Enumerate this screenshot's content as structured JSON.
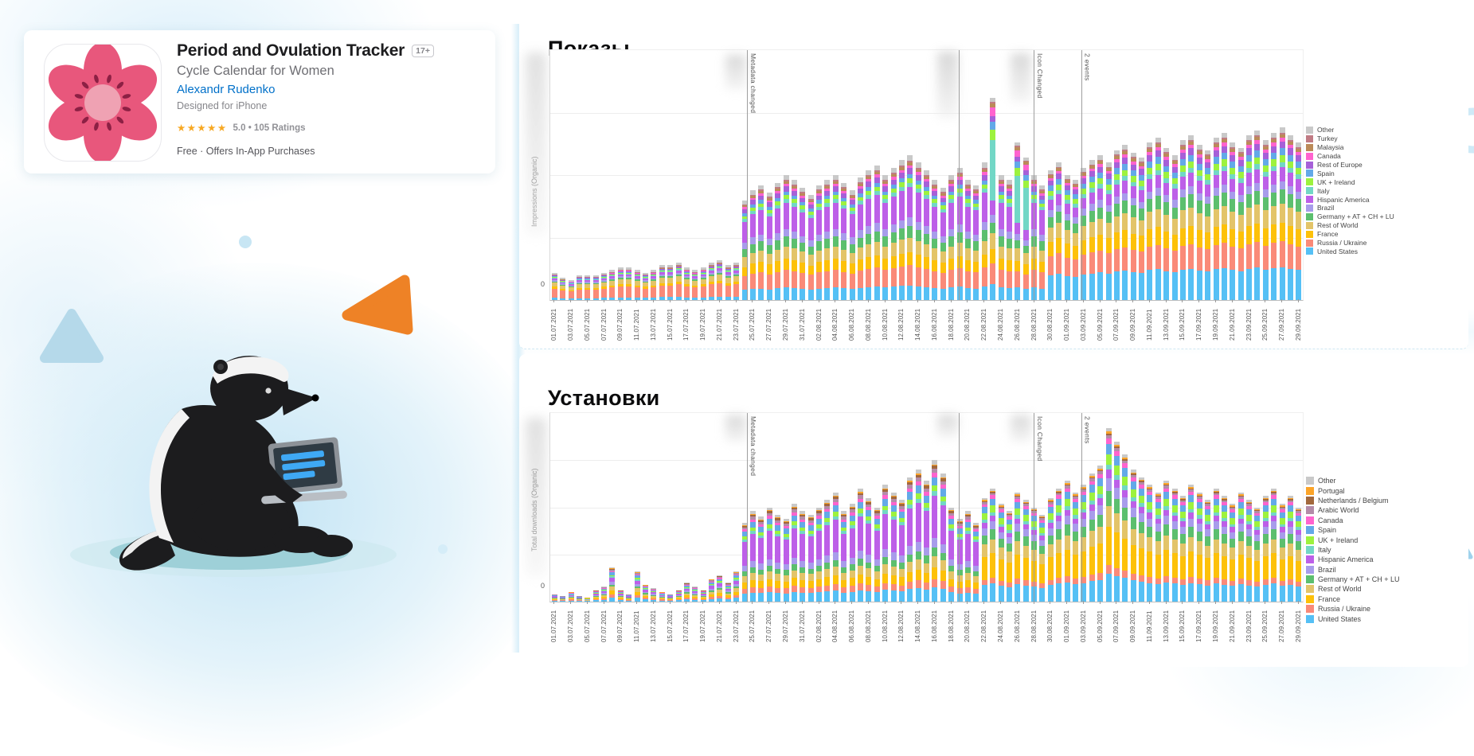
{
  "app_card": {
    "title": "Period and Ovulation Tracker",
    "age_badge": "17+",
    "subtitle": "Cycle Calendar for Women",
    "developer": "Alexandr Rudenko",
    "platform_note": "Designed for iPhone",
    "stars": "★★★★★",
    "rating_text": "5.0 • 105 Ratings",
    "price_line": "Free · Offers In-App Purchases",
    "accent_link_color": "#0070c9",
    "star_color": "#f7a823"
  },
  "chart_data": [
    {
      "type": "bar",
      "stacked": true,
      "title": "Показы",
      "ylabel": "Impressions (Organic)",
      "y_base_tick": "0",
      "y_axis_values_hidden": true,
      "grid": true,
      "legend_position": "right",
      "days": 91,
      "x_tick_labels": [
        "01.07.2021",
        "03.07.2021",
        "05.07.2021",
        "07.07.2021",
        "09.07.2021",
        "11.07.2021",
        "13.07.2021",
        "15.07.2021",
        "17.07.2021",
        "19.07.2021",
        "21.07.2021",
        "23.07.2021",
        "25.07.2021",
        "27.07.2021",
        "29.07.2021",
        "31.07.2021",
        "02.08.2021",
        "04.08.2021",
        "06.08.2021",
        "08.08.2021",
        "10.08.2021",
        "12.08.2021",
        "14.08.2021",
        "16.08.2021",
        "18.08.2021",
        "20.08.2021",
        "22.08.2021",
        "24.08.2021",
        "26.08.2021",
        "28.08.2021",
        "30.08.2021",
        "01.09.2021",
        "03.09.2021",
        "05.09.2021",
        "07.09.2021",
        "09.09.2021",
        "11.09.2021",
        "13.09.2021",
        "15.09.2021",
        "17.09.2021",
        "19.09.2021",
        "21.09.2021",
        "23.09.2021",
        "25.09.2021",
        "27.09.2021",
        "29.09.2021"
      ],
      "events": [
        {
          "x_day": 23.8,
          "label": "Metadata changed"
        },
        {
          "x_day": 49.4,
          "label": ""
        },
        {
          "x_day": 58.45,
          "label": "Icon Changed"
        },
        {
          "x_day": 64.2,
          "label": "2 events"
        }
      ],
      "series_bottom_to_top": [
        {
          "name": "United States",
          "color": "#55c0f5"
        },
        {
          "name": "Russia / Ukraine",
          "color": "#fa8a78"
        },
        {
          "name": "France",
          "color": "#fdc109"
        },
        {
          "name": "Rest of World",
          "color": "#e3c469"
        },
        {
          "name": "Germany + AT + CH + LU",
          "color": "#5cbf6e"
        },
        {
          "name": "Brazil",
          "color": "#a89ceb"
        },
        {
          "name": "Hispanic America",
          "color": "#bd5fe8"
        },
        {
          "name": "Italy",
          "color": "#72d7c6"
        },
        {
          "name": "UK + Ireland",
          "color": "#9df23e"
        },
        {
          "name": "Spain",
          "color": "#63a9e8"
        },
        {
          "name": "Rest of Europe",
          "color": "#a660d8"
        },
        {
          "name": "Canada",
          "color": "#ff63ce"
        },
        {
          "name": "Malaysia",
          "color": "#bb8a58"
        },
        {
          "name": "Turkey",
          "color": "#c07b84"
        },
        {
          "name": "Other",
          "color": "#c9c9c9"
        }
      ],
      "composition_profiles": {
        "early": [
          8,
          34,
          6,
          16,
          4,
          5,
          6,
          3,
          2,
          2,
          3,
          1,
          1,
          2,
          7
        ],
        "growth": [
          10,
          14,
          9,
          10,
          8,
          6,
          21,
          3,
          3,
          3,
          4,
          2,
          2,
          1,
          4
        ],
        "spike": [
          8,
          10,
          7,
          8,
          5,
          4,
          7,
          30,
          5,
          4,
          3,
          4,
          2,
          1,
          2
        ],
        "late": [
          19,
          15,
          11,
          11,
          8,
          5,
          8,
          3,
          4,
          4,
          4,
          2,
          2,
          1,
          3
        ]
      },
      "phases": [
        {
          "from": 0,
          "to": 22,
          "profile": "early"
        },
        {
          "from": 23,
          "to": 52,
          "profile": "growth"
        },
        {
          "from": 53,
          "to": 53,
          "profile": "spike"
        },
        {
          "from": 54,
          "to": 55,
          "profile": "growth"
        },
        {
          "from": 56,
          "to": 57,
          "profile": "spike"
        },
        {
          "from": 58,
          "to": 59,
          "profile": "growth"
        },
        {
          "from": 60,
          "to": 90,
          "profile": "late"
        }
      ],
      "daily_total_pct": [
        11,
        9,
        8,
        10,
        10,
        10,
        11,
        12,
        13,
        13,
        12,
        11,
        12,
        14,
        14,
        15,
        13,
        12,
        13,
        15,
        16,
        14,
        15,
        40,
        44,
        46,
        43,
        47,
        50,
        48,
        45,
        42,
        46,
        48,
        50,
        47,
        44,
        49,
        52,
        54,
        50,
        53,
        56,
        58,
        55,
        52,
        48,
        45,
        50,
        53,
        48,
        46,
        55,
        81,
        50,
        48,
        63,
        57,
        50,
        46,
        52,
        55,
        50,
        48,
        53,
        56,
        58,
        55,
        60,
        62,
        59,
        57,
        63,
        65,
        61,
        58,
        64,
        66,
        62,
        60,
        65,
        67,
        63,
        61,
        66,
        68,
        64,
        67,
        69,
        66,
        63
      ]
    },
    {
      "type": "bar",
      "stacked": true,
      "title": "Установки",
      "ylabel": "Total downloads (Organic)",
      "y_base_tick": "0",
      "y_axis_values_hidden": true,
      "grid": true,
      "legend_position": "right",
      "days": 91,
      "x_tick_labels": [
        "01.07.2021",
        "03.07.2021",
        "05.07.2021",
        "07.07.2021",
        "09.07.2021",
        "11.07.2021",
        "13.07.2021",
        "15.07.2021",
        "17.07.2021",
        "19.07.2021",
        "21.07.2021",
        "23.07.2021",
        "25.07.2021",
        "27.07.2021",
        "29.07.2021",
        "31.07.2021",
        "02.08.2021",
        "04.08.2021",
        "06.08.2021",
        "08.08.2021",
        "10.08.2021",
        "12.08.2021",
        "14.08.2021",
        "16.08.2021",
        "18.08.2021",
        "20.08.2021",
        "22.08.2021",
        "24.08.2021",
        "26.08.2021",
        "28.08.2021",
        "30.08.2021",
        "01.09.2021",
        "03.09.2021",
        "05.09.2021",
        "07.09.2021",
        "09.09.2021",
        "11.09.2021",
        "13.09.2021",
        "15.09.2021",
        "17.09.2021",
        "19.09.2021",
        "21.09.2021",
        "23.09.2021",
        "25.09.2021",
        "27.09.2021",
        "29.09.2021"
      ],
      "events": [
        {
          "x_day": 23.8,
          "label": "Metadata changed"
        },
        {
          "x_day": 49.4,
          "label": ""
        },
        {
          "x_day": 58.45,
          "label": "Icon Changed"
        },
        {
          "x_day": 64.2,
          "label": "2 events"
        }
      ],
      "series_bottom_to_top": [
        {
          "name": "United States",
          "color": "#55c0f5"
        },
        {
          "name": "Russia / Ukraine",
          "color": "#fa8a78"
        },
        {
          "name": "France",
          "color": "#fdc109"
        },
        {
          "name": "Rest of World",
          "color": "#e3c469"
        },
        {
          "name": "Germany + AT + CH + LU",
          "color": "#5cbf6e"
        },
        {
          "name": "Brazil",
          "color": "#a89ceb"
        },
        {
          "name": "Hispanic America",
          "color": "#bd5fe8"
        },
        {
          "name": "Italy",
          "color": "#72d7c6"
        },
        {
          "name": "UK + Ireland",
          "color": "#9df23e"
        },
        {
          "name": "Spain",
          "color": "#63a9e8"
        },
        {
          "name": "Canada",
          "color": "#ff63ce"
        },
        {
          "name": "Arabic World",
          "color": "#b38ba8"
        },
        {
          "name": "Netherlands / Belgium",
          "color": "#a2683c"
        },
        {
          "name": "Portugal",
          "color": "#fca428"
        },
        {
          "name": "Other",
          "color": "#c9c9c9"
        }
      ],
      "composition_profiles": {
        "early": [
          12,
          10,
          10,
          12,
          6,
          8,
          12,
          4,
          4,
          8,
          4,
          4,
          2,
          2,
          2
        ],
        "growth": [
          10,
          6,
          8,
          8,
          6,
          7,
          30,
          3,
          4,
          6,
          3,
          3,
          2,
          1,
          3
        ],
        "late": [
          16,
          5,
          22,
          12,
          9,
          7,
          5,
          3,
          6,
          6,
          3,
          2,
          1,
          1,
          2
        ]
      },
      "phases": [
        {
          "from": 0,
          "to": 22,
          "profile": "early"
        },
        {
          "from": 23,
          "to": 51,
          "profile": "growth"
        },
        {
          "from": 52,
          "to": 90,
          "profile": "late"
        }
      ],
      "daily_total_pct": [
        4,
        3,
        5,
        3,
        2,
        6,
        8,
        18,
        6,
        4,
        16,
        9,
        7,
        5,
        4,
        6,
        10,
        8,
        6,
        12,
        14,
        10,
        16,
        42,
        48,
        45,
        50,
        46,
        44,
        52,
        48,
        46,
        50,
        54,
        58,
        48,
        52,
        60,
        55,
        50,
        62,
        58,
        54,
        66,
        70,
        64,
        75,
        68,
        50,
        44,
        48,
        42,
        55,
        60,
        52,
        48,
        58,
        54,
        50,
        46,
        55,
        60,
        64,
        58,
        62,
        68,
        72,
        92,
        85,
        78,
        70,
        66,
        62,
        58,
        64,
        60,
        56,
        62,
        58,
        54,
        60,
        56,
        52,
        58,
        54,
        50,
        56,
        60,
        52,
        56,
        50
      ]
    }
  ]
}
